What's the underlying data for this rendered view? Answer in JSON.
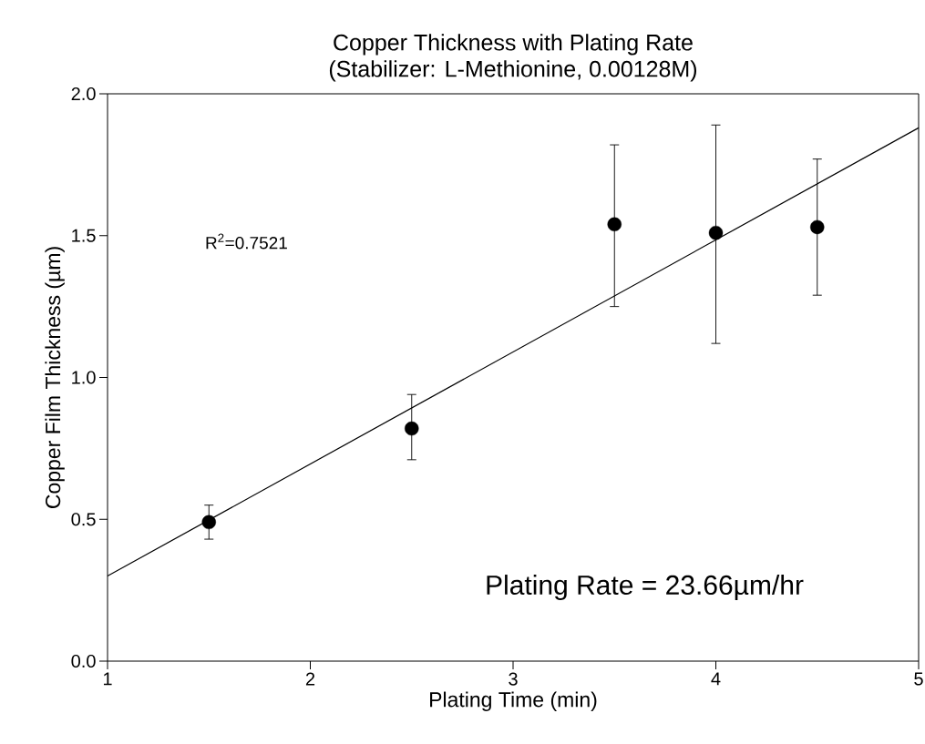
{
  "chart_data": {
    "type": "scatter",
    "title": "Copper Thickness with Plating Rate",
    "subtitle": "(Stabilizer: L-Methionine, 0.00128M)",
    "xlabel": "Plating Time (min)",
    "ylabel": "Copper Film Thickness (µm)",
    "x": [
      1.5,
      2.5,
      3.5,
      4.0,
      4.5
    ],
    "series": [
      {
        "color": "#000000",
        "marker": "circle",
        "values": [
          0.49,
          0.82,
          1.54,
          1.51,
          1.53
        ],
        "errors": [
          [
            0.43,
            0.55
          ],
          [
            0.71,
            0.94
          ],
          [
            1.25,
            1.82
          ],
          [
            1.12,
            1.89
          ],
          [
            1.29,
            1.77
          ]
        ]
      },
      {
        "type": "line",
        "color": "#000000",
        "marker": "none",
        "line_style": "solid",
        "x": [
          1,
          5
        ],
        "values": [
          0.3,
          1.88
        ]
      }
    ],
    "annotations": [
      "R$^{2}$=0.7521",
      "Plating Rate = 23.66µm/hr"
    ],
    "xlim": [
      1,
      5
    ],
    "ylim": [
      0,
      2
    ],
    "xticks": [
      1,
      2,
      3,
      4,
      5
    ],
    "yticks": [
      {
        "value": 0,
        "label": "0.0"
      },
      {
        "value": 0.5,
        "label": "0.5"
      },
      {
        "value": 1,
        "label": "1.0"
      },
      {
        "value": 1.5,
        "label": "1.5"
      },
      {
        "value": 2,
        "label": "2.0"
      }
    ],
    "grid": false
  }
}
